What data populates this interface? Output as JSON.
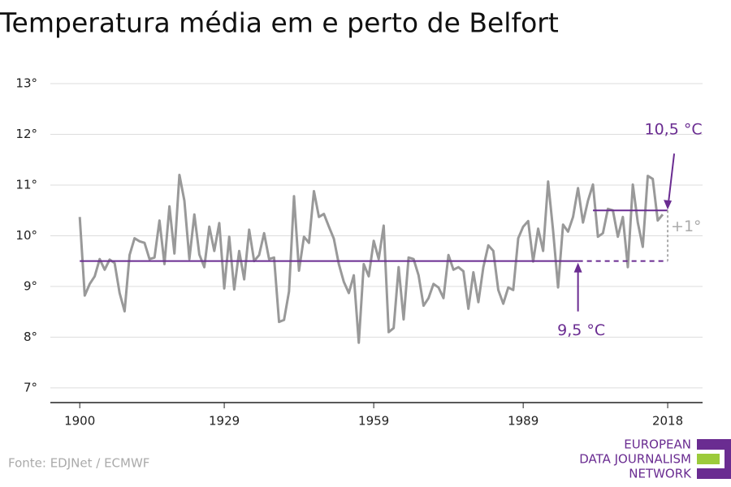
{
  "chart_data": {
    "type": "line",
    "title": "Temperatura média em e perto de Belfort",
    "source": "Fonte: EDJNet / ECMWF",
    "logo": [
      "EUROPEAN",
      "DATA JOURNALISM",
      "NETWORK"
    ],
    "x": [
      1900,
      1901,
      1902,
      1903,
      1904,
      1905,
      1906,
      1907,
      1908,
      1909,
      1910,
      1911,
      1912,
      1913,
      1914,
      1915,
      1916,
      1917,
      1918,
      1919,
      1920,
      1921,
      1922,
      1923,
      1924,
      1925,
      1926,
      1927,
      1928,
      1929,
      1930,
      1931,
      1932,
      1933,
      1934,
      1935,
      1936,
      1937,
      1938,
      1939,
      1940,
      1941,
      1942,
      1943,
      1944,
      1945,
      1946,
      1947,
      1948,
      1949,
      1950,
      1951,
      1952,
      1953,
      1954,
      1955,
      1956,
      1957,
      1958,
      1959,
      1960,
      1961,
      1962,
      1963,
      1964,
      1965,
      1966,
      1967,
      1968,
      1969,
      1970,
      1971,
      1972,
      1973,
      1974,
      1975,
      1976,
      1977,
      1978,
      1979,
      1980,
      1981,
      1982,
      1983,
      1984,
      1985,
      1986,
      1987,
      1988,
      1989,
      1990,
      1991,
      1992,
      1993,
      1994,
      1995,
      1996,
      1997,
      1998,
      1999,
      2000,
      2001,
      2002,
      2003,
      2004,
      2005,
      2006,
      2007,
      2008,
      2009,
      2010,
      2011,
      2012,
      2013,
      2014,
      2015,
      2016,
      2017
    ],
    "series": [
      {
        "color": "#999999",
        "values": [
          10.37,
          8.82,
          9.05,
          9.2,
          9.54,
          9.33,
          9.53,
          9.46,
          8.87,
          8.51,
          9.62,
          9.95,
          9.89,
          9.86,
          9.54,
          9.57,
          10.3,
          9.44,
          10.58,
          9.65,
          11.2,
          10.69,
          9.54,
          10.42,
          9.63,
          9.38,
          10.18,
          9.7,
          10.25,
          8.96,
          9.98,
          8.94,
          9.7,
          9.14,
          10.12,
          9.5,
          9.62,
          10.05,
          9.54,
          9.57,
          8.3,
          8.34,
          8.9,
          10.78,
          9.31,
          9.98,
          9.86,
          10.88,
          10.37,
          10.43,
          10.18,
          9.94,
          9.44,
          9.09,
          8.87,
          9.22,
          7.89,
          9.44,
          9.2,
          9.9,
          9.54,
          10.2,
          8.1,
          8.18,
          9.38,
          8.35,
          9.57,
          9.54,
          9.22,
          8.62,
          8.77,
          9.05,
          8.98,
          8.77,
          9.62,
          9.33,
          9.38,
          9.3,
          8.56,
          9.28,
          8.69,
          9.38,
          9.81,
          9.7,
          8.93,
          8.66,
          8.98,
          8.93,
          9.95,
          10.18,
          10.29,
          9.49,
          10.14,
          9.7,
          11.07,
          10.1,
          8.98,
          10.22,
          10.08,
          10.37,
          10.94,
          10.26,
          10.69,
          11.01,
          9.98,
          10.05,
          10.53,
          10.5,
          9.98,
          10.37,
          9.38,
          11.01,
          10.26,
          9.78,
          11.18,
          11.12,
          10.3,
          10.42
        ]
      }
    ],
    "reference_lines": [
      {
        "value": 9.5,
        "label": "9,5 °C",
        "from": 1900,
        "solid_to": 2000,
        "to": 2018,
        "color": "#6a2c91"
      },
      {
        "value": 10.5,
        "label": "10,5 °C",
        "from": 2003,
        "solid_to": 2018,
        "to": 2018,
        "color": "#6a2c91"
      }
    ],
    "difference": {
      "label": "+1°",
      "x": 2018,
      "color": "#aaaaaa"
    },
    "xlim": [
      1894.1,
      2025
    ],
    "xticks": [
      1900,
      1929,
      1959,
      1989,
      2018
    ],
    "ylim": [
      6.71,
      13.2
    ],
    "yticks": [
      {
        "value": 7,
        "label": "7°"
      },
      {
        "value": 8,
        "label": "8°"
      },
      {
        "value": 9,
        "label": "9°"
      },
      {
        "value": 10,
        "label": "10°"
      },
      {
        "value": 11,
        "label": "11°"
      },
      {
        "value": 12,
        "label": "12°"
      },
      {
        "value": 13,
        "label": "13°"
      }
    ],
    "grid": true
  }
}
